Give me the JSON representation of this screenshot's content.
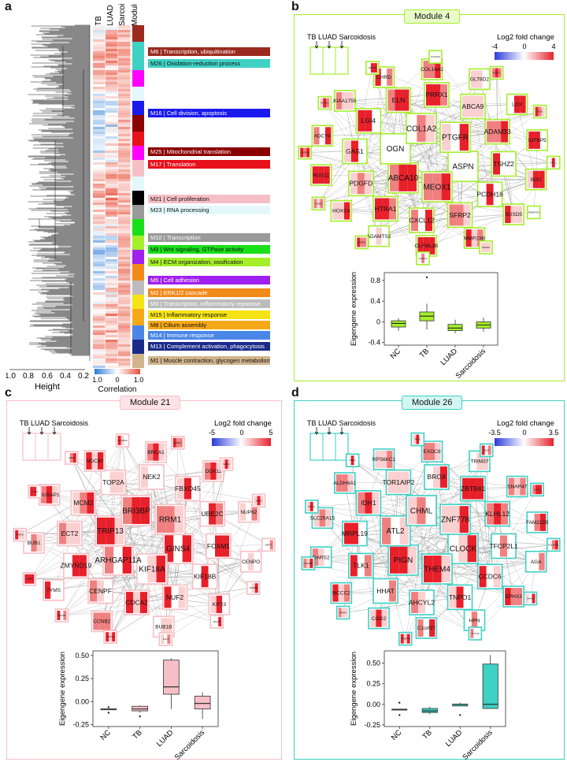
{
  "panels": {
    "a": "a",
    "b": "b",
    "c": "c",
    "d": "d"
  },
  "panel_a": {
    "height_label": "Height",
    "height_ticks": [
      "1.0",
      "0.8",
      "0.6",
      "0.4",
      "0.2"
    ],
    "columns": [
      "TB",
      "LUAD",
      "Sarcoidosis",
      "Module"
    ],
    "correlation_label": "Correlation",
    "correlation_ticks": [
      "-1.0",
      "0",
      "1.0"
    ],
    "modules": [
      {
        "id": "M6",
        "text": "M6  | Transcription, ubiquitination",
        "color": "#9b2a1e"
      },
      {
        "id": "M26",
        "text": "M26 | Oxidation-reduction process",
        "color": "#3ed1c4"
      },
      {
        "id": "M16",
        "text": "M16 | Cell division, apoptosis",
        "color": "#1a1aee"
      },
      {
        "id": "M25",
        "text": "M25 | Mitochondrial translation",
        "color": "#8b0000"
      },
      {
        "id": "M17",
        "text": "M17 | Translation",
        "color": "#e8101b"
      },
      {
        "id": "M21",
        "text": "M21 | Cell proliferation",
        "color": "#f6bfc6"
      },
      {
        "id": "M23",
        "text": "M23 | RNA processing",
        "color": "#e4f8fb"
      },
      {
        "id": "M10",
        "text": "M10 | Transcription",
        "color": "#9a9a9a"
      },
      {
        "id": "M9",
        "text": "M9  | Wnt signaling, GTPase activity",
        "color": "#19e019"
      },
      {
        "id": "M4",
        "text": "M4  | ECM organization, ossification",
        "color": "#a5ef2a"
      },
      {
        "id": "M5",
        "text": "M5  | Cell adhesion",
        "color": "#a020f0"
      },
      {
        "id": "M2",
        "text": "M2  | ERK1/2 cascade",
        "color": "#f28a1a"
      },
      {
        "id": "M3",
        "text": "M3  | Transcription, inflammatory repsonse",
        "color": "#bcbcbc"
      },
      {
        "id": "M15",
        "text": "M15 | Inflammatory response",
        "color": "#f5e316"
      },
      {
        "id": "M8",
        "text": "M8  | Cilium assembly",
        "color": "#f5a818"
      },
      {
        "id": "M14",
        "text": "M14 | Immune response",
        "color": "#4a86e8"
      },
      {
        "id": "M13",
        "text": "M13 | Complement activation, phagocytosis",
        "color": "#1b2a8a"
      },
      {
        "id": "M1",
        "text": "M1  | Muscle contraction, glycogen metabolism",
        "color": "#d2b48c"
      }
    ]
  },
  "panel_b": {
    "title": "Module 4",
    "legend_title": "Log2 fold change",
    "legend_ticks": [
      "-4",
      "0",
      "4"
    ],
    "inset_labels": "TB  LUAD  Sarcoidosis",
    "genes_large": [
      "ASPN",
      "MEOX1",
      "ABCA10",
      "OGN",
      "COL1A2",
      "PTGFR",
      "TSHZ2",
      "PCDH18",
      "SFRP2",
      "CXCL12",
      "HTRA1",
      "PDGFD",
      "GAS1",
      "LGI4",
      "ELN",
      "PRRX1",
      "ABCA9",
      "ADAM33",
      "BOC",
      "SUSD5",
      "MMP23B",
      "OLFML2B",
      "ADAMTS2",
      "HOXC4",
      "RGS11",
      "ADCY4",
      "KIAA1755",
      "CHRD",
      "COL14A1",
      "GLT8D2",
      "LOX",
      "IGFBP5"
    ],
    "genes_small": [
      "FSTL1",
      "ADAMTS5",
      "SPARC",
      "COL5A1",
      "PDE5A",
      "SYNE3",
      "NFATC4",
      "EFHD1",
      "SSC5D",
      "COL6A3",
      "FOXF1",
      "DCN"
    ],
    "boxplot": {
      "ylabel": "Eigengene expression",
      "categories": [
        "NC",
        "TB",
        "LUAD",
        "Sarcoidosis"
      ],
      "yticks": [
        "0.8",
        "0.4",
        "0",
        "-0.4"
      ]
    }
  },
  "panel_c": {
    "title": "Module 21",
    "legend_title": "Log2 fold change",
    "legend_ticks": [
      "-5",
      "0",
      "5"
    ],
    "inset_labels": "TB  LUAD  Sarcoidosis",
    "genes_large": [
      "GINS4",
      "KIF18A",
      "ARHGAP11A",
      "TRIP13",
      "BRI3BP",
      "RRM1",
      "FOXM1",
      "KIF18B",
      "NUF2",
      "CDCA2",
      "CENPF",
      "ZMYND19",
      "ECT2",
      "MCM2",
      "TOP2A",
      "NEK2",
      "FBXO45",
      "UBE2C",
      "CENPO",
      "KIF23",
      "BUB1B",
      "CCNB2",
      "TYMS",
      "BUB1",
      "NUSAP1",
      "NDC80",
      "BRCA1",
      "DDX11",
      "NUP62"
    ],
    "genes_small": [
      "SIRT7",
      "TRNDB",
      "MCM6",
      "PLK4",
      "CTPS1",
      "KIF20A",
      "UHRF1",
      "GMPS",
      "POLQ",
      "E2F8",
      "NCAPG2",
      "MYBL2",
      "SMC4",
      "ANLN"
    ],
    "boxplot": {
      "ylabel": "Eigengene expression",
      "categories": [
        "NC",
        "TB",
        "LUAD",
        "Sarcoidosis"
      ],
      "yticks": [
        "0.50",
        "0.25",
        "0.00",
        "-0.25"
      ]
    }
  },
  "panel_d": {
    "title": "Module 26",
    "legend_title": "Log2 fold change",
    "legend_ticks": [
      "-3.5",
      "0",
      "3.5"
    ],
    "inset_labels": "TB  LUAD  Sarcoidosis",
    "genes_large": [
      "CLOCK",
      "THEM4",
      "PIGN",
      "ATL2",
      "CHML",
      "ZNF778",
      "TFCP2L1",
      "CCDC6",
      "TNPO1",
      "AHCYL2",
      "HHAT",
      "TLK1",
      "MRPL19",
      "IDH1",
      "TOR1AIP2",
      "BROX",
      "ZBTB41",
      "KLHL12",
      "AGA",
      "EPHX3",
      "HPN",
      "C1orf27",
      "COG2",
      "MCCC2",
      "DARS2",
      "SLC25A15",
      "ALDH6A1",
      "RPS6KC1",
      "EXOC8",
      "TRIM37",
      "SNAP47",
      "FAM222B"
    ],
    "genes_small": [
      "GOLPH3L",
      "HAAO",
      "TCTN3",
      "NRBF2",
      "PRMT",
      "POLR3B",
      "MTO1",
      "NAPG",
      "PIGA",
      "SIAE",
      "CPT2"
    ],
    "boxplot": {
      "ylabel": "Eigengene expression",
      "categories": [
        "NC",
        "TB",
        "LUAD",
        "Sarcoidosis"
      ],
      "yticks": [
        "0.50",
        "0.25",
        "0.00",
        "-0.25"
      ]
    }
  },
  "chart_data": [
    {
      "type": "box",
      "title": "Module 4",
      "ylabel": "Eigengene expression",
      "categories": [
        "NC",
        "TB",
        "LUAD",
        "Sarcoidosis"
      ],
      "ylim": [
        -0.45,
        0.95
      ],
      "boxes": [
        {
          "name": "NC",
          "q1": -0.1,
          "median": -0.03,
          "q3": 0.02,
          "whisker_low": -0.17,
          "whisker_high": 0.07
        },
        {
          "name": "TB",
          "q1": 0.02,
          "median": 0.11,
          "q3": 0.19,
          "whisker_low": -0.15,
          "whisker_high": 0.35,
          "outliers": [
            0.86
          ]
        },
        {
          "name": "LUAD",
          "q1": -0.17,
          "median": -0.12,
          "q3": -0.05,
          "whisker_low": -0.22,
          "whisker_high": 0.04
        },
        {
          "name": "Sarcoidosis",
          "q1": -0.12,
          "median": -0.06,
          "q3": 0.0,
          "whisker_low": -0.19,
          "whisker_high": 0.08
        }
      ],
      "fill": "#a5ef2a"
    },
    {
      "type": "box",
      "title": "Module 21",
      "ylabel": "Eigengene expression",
      "categories": [
        "NC",
        "TB",
        "LUAD",
        "Sarcoidosis"
      ],
      "ylim": [
        -0.27,
        0.55
      ],
      "boxes": [
        {
          "name": "NC",
          "q1": -0.08,
          "median": -0.08,
          "q3": -0.08,
          "whisker_low": -0.08,
          "whisker_high": -0.08,
          "outliers": [
            -0.06,
            -0.12
          ]
        },
        {
          "name": "TB",
          "q1": -0.1,
          "median": -0.08,
          "q3": -0.05,
          "whisker_low": -0.12,
          "whisker_high": -0.04,
          "outliers": [
            -0.16
          ]
        },
        {
          "name": "LUAD",
          "q1": 0.08,
          "median": 0.16,
          "q3": 0.45,
          "whisker_low": -0.08,
          "whisker_high": 0.47
        },
        {
          "name": "Sarcoidosis",
          "q1": -0.08,
          "median": -0.02,
          "q3": 0.06,
          "whisker_low": -0.19,
          "whisker_high": 0.1
        }
      ],
      "fill": "#f6bfc6"
    },
    {
      "type": "box",
      "title": "Module 26",
      "ylabel": "Eigengene expression",
      "categories": [
        "NC",
        "TB",
        "LUAD",
        "Sarcoidosis"
      ],
      "ylim": [
        -0.27,
        0.65
      ],
      "boxes": [
        {
          "name": "NC",
          "q1": -0.06,
          "median": -0.06,
          "q3": -0.06,
          "whisker_low": -0.06,
          "whisker_high": -0.06,
          "outliers": [
            -0.13,
            0.02
          ]
        },
        {
          "name": "TB",
          "q1": -0.1,
          "median": -0.08,
          "q3": -0.05,
          "whisker_low": -0.12,
          "whisker_high": -0.03
        },
        {
          "name": "LUAD",
          "q1": -0.02,
          "median": 0.0,
          "q3": 0.0,
          "whisker_low": -0.02,
          "whisker_high": 0.02,
          "outliers": [
            -0.13
          ]
        },
        {
          "name": "Sarcoidosis",
          "q1": -0.05,
          "median": 0.0,
          "q3": 0.49,
          "whisker_low": -0.05,
          "whisker_high": 0.6
        }
      ],
      "fill": "#3ed1c4"
    }
  ]
}
